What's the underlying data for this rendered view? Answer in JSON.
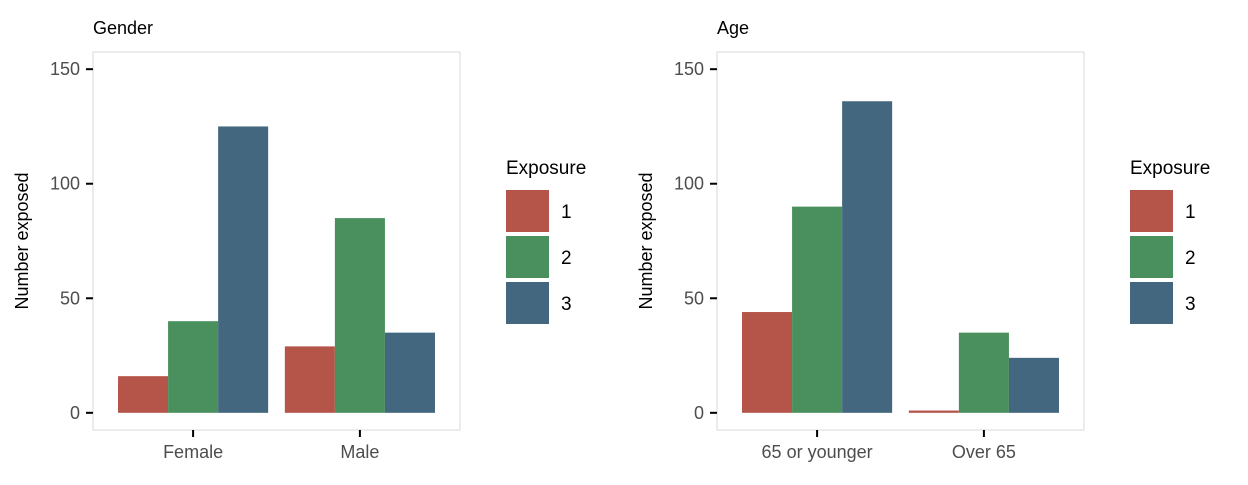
{
  "chart_data": [
    {
      "type": "bar",
      "title": "Gender",
      "xlabel": "",
      "ylabel": "Number exposed",
      "categories": [
        "Female",
        "Male"
      ],
      "series": [
        {
          "name": "1",
          "color": "#b5554a",
          "values": [
            16,
            29
          ]
        },
        {
          "name": "2",
          "color": "#4a905e",
          "values": [
            40,
            85
          ]
        },
        {
          "name": "3",
          "color": "#43677e",
          "values": [
            125,
            35
          ]
        }
      ],
      "ylim": [
        -7.5,
        157.5
      ],
      "yticks": [
        0,
        50,
        100,
        150
      ],
      "legend": {
        "title": "Exposure",
        "position": "right"
      },
      "grid": false
    },
    {
      "type": "bar",
      "title": "Age",
      "xlabel": "",
      "ylabel": "Number exposed",
      "categories": [
        "65 or younger",
        "Over 65"
      ],
      "series": [
        {
          "name": "1",
          "color": "#b5554a",
          "values": [
            44,
            1
          ]
        },
        {
          "name": "2",
          "color": "#4a905e",
          "values": [
            90,
            35
          ]
        },
        {
          "name": "3",
          "color": "#43677e",
          "values": [
            136,
            24
          ]
        }
      ],
      "ylim": [
        -7.5,
        157.5
      ],
      "yticks": [
        0,
        50,
        100,
        150
      ],
      "legend": {
        "title": "Exposure",
        "position": "right"
      },
      "grid": false
    }
  ]
}
